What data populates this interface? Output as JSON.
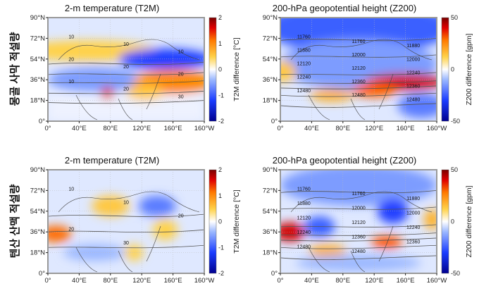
{
  "row_labels": [
    "몽골 사막 적설량",
    "텐산 산맥 적설량"
  ],
  "chart_data": [
    {
      "type": "heatmap",
      "title": "2-m temperature (T2M)",
      "row": 0,
      "colorbar_label": "T2M difference  [°C]",
      "colorbar_range": [
        -2,
        2
      ],
      "colorbar_ticks": [
        "2",
        "1",
        "0",
        "-1",
        "-2"
      ],
      "xticks": [
        "0°",
        "40°E",
        "80°E",
        "120°E",
        "160°E",
        "160°W"
      ],
      "yticks": [
        "90°N",
        "72°N",
        "54°N",
        "36°N",
        "18°N",
        "0°"
      ],
      "contour_labels": [
        "10",
        "10",
        "10",
        "20",
        "20",
        "20",
        "10",
        "20",
        "30"
      ],
      "anomalies": [
        {
          "region": "Arctic coast N Europe",
          "value": 0.6
        },
        {
          "region": "East Siberia",
          "value": -1.5
        },
        {
          "region": "Central Asia",
          "value": -0.6
        },
        {
          "region": "Northeast Asia / North Pacific",
          "value": 1.2
        },
        {
          "region": "Tibet west",
          "value": 1.5
        }
      ]
    },
    {
      "type": "heatmap",
      "title": "200-hPa geopotential height (Z200)",
      "row": 0,
      "colorbar_label": "Z200 difference  [gpm]",
      "colorbar_range": [
        -50,
        50
      ],
      "colorbar_ticks": [
        "50",
        "0",
        "-50"
      ],
      "xticks": [
        "0°",
        "40°E",
        "80°E",
        "120°E",
        "160°E",
        "160°W"
      ],
      "yticks": [
        "90°N",
        "72°N",
        "54°N",
        "36°N",
        "18°N",
        "0°"
      ],
      "contour_labels": [
        "11760",
        "11760",
        "11880",
        "11880",
        "12000",
        "12000",
        "12120",
        "12120",
        "12240",
        "12240",
        "12360",
        "12360",
        "12480",
        "12480",
        "12480"
      ],
      "anomalies": [
        {
          "region": "Arctic / polar",
          "value": -25
        },
        {
          "region": "West Europe 54N",
          "value": 15
        },
        {
          "region": "Central Asia 40N",
          "value": 15
        },
        {
          "region": "East Asia to North Pacific 45N",
          "value": 45
        }
      ]
    },
    {
      "type": "heatmap",
      "title": "2-m temperature (T2M)",
      "row": 1,
      "colorbar_label": "T2M difference  [°C]",
      "colorbar_range": [
        -2,
        2
      ],
      "colorbar_ticks": [
        "2",
        "1",
        "0",
        "-1",
        "-2"
      ],
      "xticks": [
        "0°",
        "40°E",
        "80°E",
        "120°E",
        "160°E",
        "160°W"
      ],
      "yticks": [
        "90°N",
        "72°N",
        "54°N",
        "36°N",
        "18°N",
        "0°"
      ],
      "contour_labels": [
        "10",
        "10",
        "20",
        "20",
        "30"
      ],
      "anomalies": [
        {
          "region": "Europe 50N",
          "value": 1.3
        },
        {
          "region": "West Siberia",
          "value": 0.8
        },
        {
          "region": "East Siberia",
          "value": -1.0
        },
        {
          "region": "Northeast Asia",
          "value": 0.6
        }
      ]
    },
    {
      "type": "heatmap",
      "title": "200-hPa geopotential height (Z200)",
      "row": 1,
      "colorbar_label": "Z200 difference  [gpm]",
      "colorbar_range": [
        -50,
        50
      ],
      "colorbar_ticks": [
        "50",
        "0",
        "-50"
      ],
      "xticks": [
        "0°",
        "40°E",
        "80°E",
        "120°E",
        "160°E",
        "160°W"
      ],
      "yticks": [
        "90°N",
        "72°N",
        "54°N",
        "36°N",
        "18°N",
        "0°"
      ],
      "contour_labels": [
        "11760",
        "11760",
        "11880",
        "11880",
        "12000",
        "12000",
        "12120",
        "12120",
        "12240",
        "12240",
        "12360",
        "12360",
        "12480",
        "12480"
      ],
      "anomalies": [
        {
          "region": "West Europe 48N",
          "value": 45
        },
        {
          "region": "Central Asia 50N",
          "value": -25
        },
        {
          "region": "Central Asia 38N",
          "value": 20
        },
        {
          "region": "East Siberia 60N",
          "value": -30
        },
        {
          "region": "East Asia 40N",
          "value": 30
        }
      ]
    }
  ]
}
